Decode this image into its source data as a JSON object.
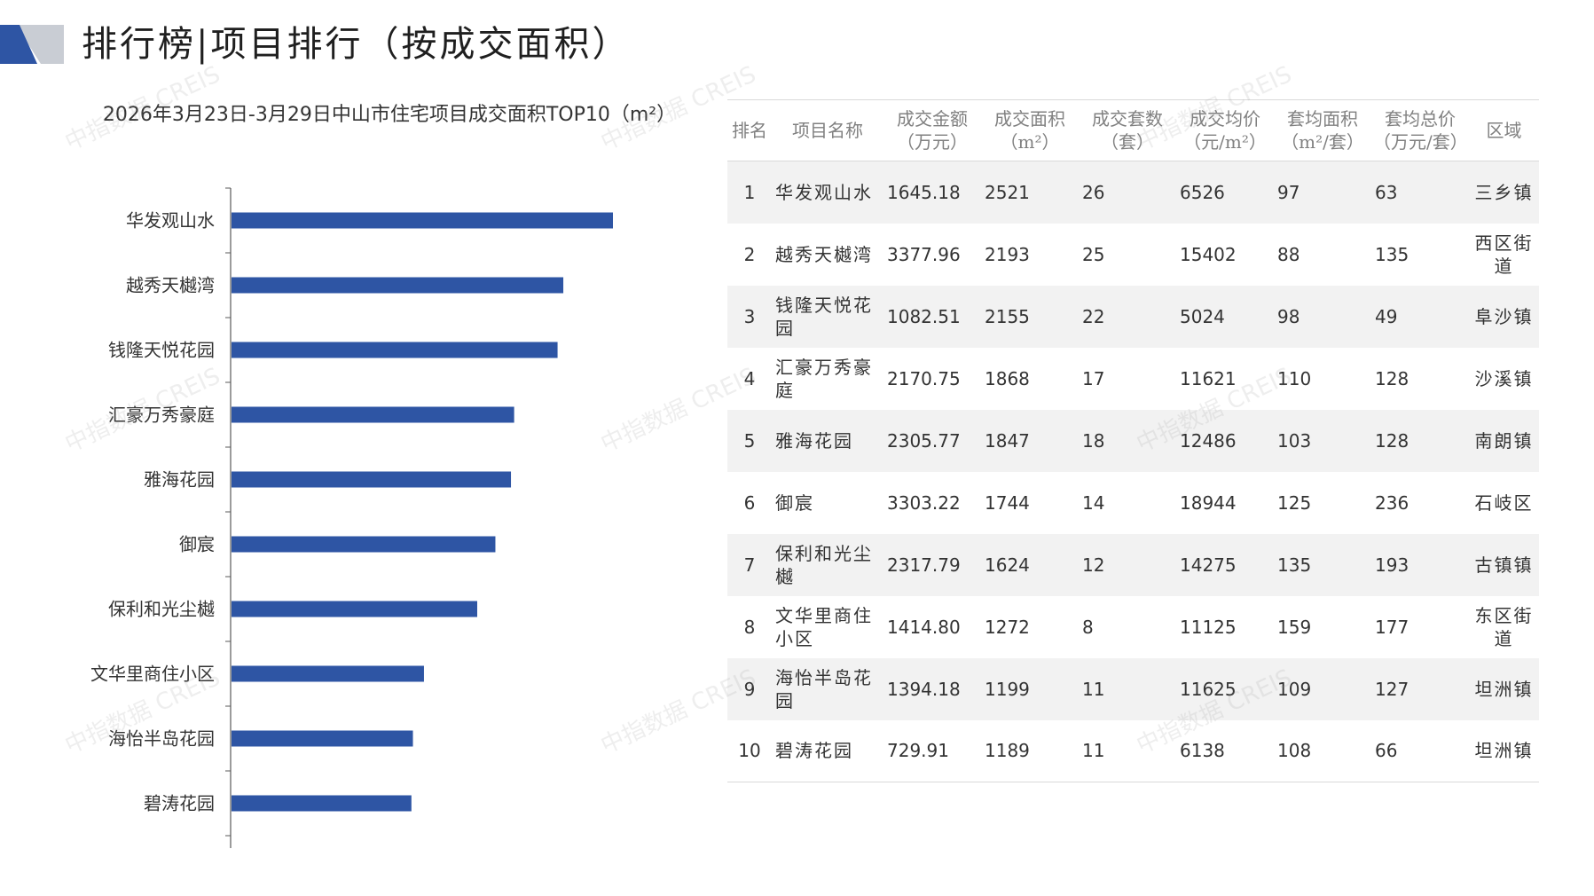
{
  "header": {
    "title": "排行榜|项目排行（按成交面积）"
  },
  "colors": {
    "bar": "#2e55a4",
    "logo_dark": "#2e55a4",
    "logo_light": "#c9cdd4",
    "axis": "#595959"
  },
  "chart_data": {
    "type": "bar",
    "orientation": "horizontal",
    "title": "2026年3月23日-3月29日中山市住宅项目成交面积TOP10（m²）",
    "categories": [
      "华发观山水",
      "越秀天樾湾",
      "钱隆天悦花园",
      "汇豪万秀豪庭",
      "雅海花园",
      "御宸",
      "保利和光尘樾",
      "文华里商住小区",
      "海怡半岛花园",
      "碧涛花园"
    ],
    "values": [
      2521,
      2193,
      2155,
      1868,
      1847,
      1744,
      1624,
      1272,
      1199,
      1189
    ],
    "xlabel": "",
    "ylabel": "",
    "xlim": [
      0,
      4000
    ],
    "grid": false,
    "legend": "none"
  },
  "table": {
    "headers": [
      {
        "line1": "排名",
        "line2": ""
      },
      {
        "line1": "项目名称",
        "line2": ""
      },
      {
        "line1": "成交金额",
        "line2": "（万元）"
      },
      {
        "line1": "成交面积",
        "line2": "（m²）"
      },
      {
        "line1": "成交套数",
        "line2": "（套）"
      },
      {
        "line1": "成交均价",
        "line2": "（元/m²）"
      },
      {
        "line1": "套均面积",
        "line2": "（m²/套）"
      },
      {
        "line1": "套均总价",
        "line2": "（万元/套）"
      },
      {
        "line1": "区域",
        "line2": ""
      }
    ],
    "rows": [
      [
        "1",
        "华发观山水",
        "1645.18",
        "2521",
        "26",
        "6526",
        "97",
        "63",
        "三乡镇"
      ],
      [
        "2",
        "越秀天樾湾",
        "3377.96",
        "2193",
        "25",
        "15402",
        "88",
        "135",
        "西区街道"
      ],
      [
        "3",
        "钱隆天悦花园",
        "1082.51",
        "2155",
        "22",
        "5024",
        "98",
        "49",
        "阜沙镇"
      ],
      [
        "4",
        "汇豪万秀豪庭",
        "2170.75",
        "1868",
        "17",
        "11621",
        "110",
        "128",
        "沙溪镇"
      ],
      [
        "5",
        "雅海花园",
        "2305.77",
        "1847",
        "18",
        "12486",
        "103",
        "128",
        "南朗镇"
      ],
      [
        "6",
        "御宸",
        "3303.22",
        "1744",
        "14",
        "18944",
        "125",
        "236",
        "石岐区"
      ],
      [
        "7",
        "保利和光尘樾",
        "2317.79",
        "1624",
        "12",
        "14275",
        "135",
        "193",
        "古镇镇"
      ],
      [
        "8",
        "文华里商住小区",
        "1414.80",
        "1272",
        "8",
        "11125",
        "159",
        "177",
        "东区街道"
      ],
      [
        "9",
        "海怡半岛花园",
        "1394.18",
        "1199",
        "11",
        "11625",
        "109",
        "127",
        "坦洲镇"
      ],
      [
        "10",
        "碧涛花园",
        "729.91",
        "1189",
        "11",
        "6138",
        "108",
        "66",
        "坦洲镇"
      ]
    ]
  },
  "watermark": {
    "text": "中指数据 CREIS"
  }
}
